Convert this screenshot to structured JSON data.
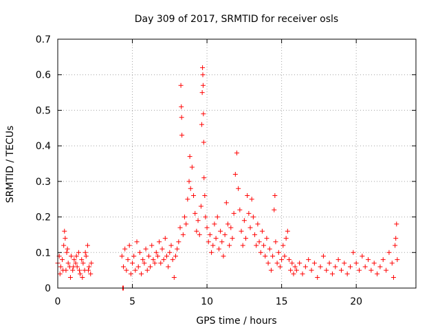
{
  "chart_data": {
    "type": "scatter",
    "title": "Day 309 of 2017, SRMTID for receiver osls",
    "xlabel": "GPS time / hours",
    "ylabel": "SRMTID / TECUs",
    "xlim": [
      0,
      24
    ],
    "ylim": [
      0,
      0.7
    ],
    "x_ticks": [
      0,
      5,
      10,
      15,
      20
    ],
    "y_ticks": [
      0,
      0.1,
      0.2,
      0.3,
      0.4,
      0.5,
      0.6,
      0.7
    ],
    "x_tick_labels": [
      "0",
      "5",
      "10",
      "15",
      "20"
    ],
    "y_tick_labels": [
      "0",
      "0.1",
      "0.2",
      "0.3",
      "0.4",
      "0.5",
      "0.6",
      "0.7"
    ],
    "grid": true,
    "marker": "+",
    "series": [
      {
        "name": "osls",
        "color": "#ff0000",
        "points": [
          [
            0.0,
            0.07
          ],
          [
            0.1,
            0.09
          ],
          [
            0.2,
            0.06
          ],
          [
            0.3,
            0.08
          ],
          [
            0.4,
            0.12
          ],
          [
            0.45,
            0.16
          ],
          [
            0.5,
            0.14
          ],
          [
            0.55,
            0.05
          ],
          [
            0.6,
            0.1
          ],
          [
            0.7,
            0.07
          ],
          [
            0.8,
            0.06
          ],
          [
            0.9,
            0.09
          ],
          [
            1.0,
            0.05
          ],
          [
            1.1,
            0.08
          ],
          [
            1.2,
            0.07
          ],
          [
            1.3,
            0.06
          ],
          [
            1.4,
            0.1
          ],
          [
            1.5,
            0.04
          ],
          [
            1.6,
            0.08
          ],
          [
            1.7,
            0.07
          ],
          [
            1.8,
            0.05
          ],
          [
            1.9,
            0.09
          ],
          [
            2.0,
            0.12
          ],
          [
            2.1,
            0.06
          ],
          [
            2.2,
            0.04
          ],
          [
            2.25,
            0.07
          ],
          [
            0.15,
            0.04
          ],
          [
            0.35,
            0.05
          ],
          [
            0.65,
            0.11
          ],
          [
            0.85,
            0.03
          ],
          [
            1.05,
            0.06
          ],
          [
            1.25,
            0.09
          ],
          [
            1.45,
            0.05
          ],
          [
            1.65,
            0.03
          ],
          [
            1.85,
            0.1
          ],
          [
            2.05,
            0.05
          ],
          [
            4.35,
            0.0
          ],
          [
            4.4,
            0.0
          ],
          [
            4.3,
            0.09
          ],
          [
            4.4,
            0.06
          ],
          [
            4.5,
            0.11
          ],
          [
            4.6,
            0.05
          ],
          [
            4.7,
            0.08
          ],
          [
            4.8,
            0.12
          ],
          [
            4.9,
            0.04
          ],
          [
            5.0,
            0.07
          ],
          [
            5.1,
            0.09
          ],
          [
            5.2,
            0.05
          ],
          [
            5.3,
            0.13
          ],
          [
            5.4,
            0.06
          ],
          [
            5.5,
            0.1
          ],
          [
            5.6,
            0.04
          ],
          [
            5.7,
            0.08
          ],
          [
            5.8,
            0.07
          ],
          [
            5.9,
            0.11
          ],
          [
            6.0,
            0.05
          ],
          [
            6.1,
            0.09
          ],
          [
            6.2,
            0.06
          ],
          [
            6.3,
            0.12
          ],
          [
            6.4,
            0.08
          ],
          [
            6.5,
            0.07
          ],
          [
            6.6,
            0.1
          ],
          [
            6.7,
            0.09
          ],
          [
            6.8,
            0.13
          ],
          [
            6.9,
            0.07
          ],
          [
            7.0,
            0.11
          ],
          [
            7.1,
            0.08
          ],
          [
            7.2,
            0.14
          ],
          [
            7.3,
            0.09
          ],
          [
            7.4,
            0.06
          ],
          [
            7.5,
            0.1
          ],
          [
            7.6,
            0.12
          ],
          [
            7.7,
            0.08
          ],
          [
            7.8,
            0.03
          ],
          [
            7.9,
            0.09
          ],
          [
            8.0,
            0.11
          ],
          [
            8.1,
            0.13
          ],
          [
            8.2,
            0.17
          ],
          [
            8.25,
            0.57
          ],
          [
            8.28,
            0.51
          ],
          [
            8.3,
            0.48
          ],
          [
            8.32,
            0.43
          ],
          [
            8.4,
            0.15
          ],
          [
            8.5,
            0.2
          ],
          [
            8.6,
            0.18
          ],
          [
            8.7,
            0.25
          ],
          [
            8.8,
            0.3
          ],
          [
            8.85,
            0.37
          ],
          [
            8.9,
            0.28
          ],
          [
            9.0,
            0.34
          ],
          [
            9.1,
            0.26
          ],
          [
            9.2,
            0.21
          ],
          [
            9.3,
            0.16
          ],
          [
            9.4,
            0.19
          ],
          [
            9.5,
            0.15
          ],
          [
            9.6,
            0.23
          ],
          [
            9.65,
            0.46
          ],
          [
            9.68,
            0.55
          ],
          [
            9.7,
            0.62
          ],
          [
            9.72,
            0.6
          ],
          [
            9.74,
            0.57
          ],
          [
            9.76,
            0.49
          ],
          [
            9.78,
            0.41
          ],
          [
            9.8,
            0.31
          ],
          [
            9.85,
            0.26
          ],
          [
            9.9,
            0.2
          ],
          [
            10.0,
            0.17
          ],
          [
            10.1,
            0.13
          ],
          [
            10.2,
            0.15
          ],
          [
            10.3,
            0.1
          ],
          [
            10.4,
            0.12
          ],
          [
            10.5,
            0.18
          ],
          [
            10.6,
            0.14
          ],
          [
            10.7,
            0.2
          ],
          [
            10.8,
            0.11
          ],
          [
            10.9,
            0.16
          ],
          [
            11.0,
            0.13
          ],
          [
            11.1,
            0.09
          ],
          [
            11.2,
            0.15
          ],
          [
            11.3,
            0.24
          ],
          [
            11.4,
            0.18
          ],
          [
            11.5,
            0.12
          ],
          [
            11.6,
            0.17
          ],
          [
            11.7,
            0.14
          ],
          [
            11.8,
            0.21
          ],
          [
            11.9,
            0.32
          ],
          [
            12.0,
            0.38
          ],
          [
            12.1,
            0.28
          ],
          [
            12.2,
            0.22
          ],
          [
            12.3,
            0.16
          ],
          [
            12.4,
            0.12
          ],
          [
            12.5,
            0.19
          ],
          [
            12.6,
            0.14
          ],
          [
            12.7,
            0.26
          ],
          [
            12.8,
            0.21
          ],
          [
            12.9,
            0.17
          ],
          [
            13.0,
            0.25
          ],
          [
            13.1,
            0.2
          ],
          [
            13.2,
            0.15
          ],
          [
            13.3,
            0.12
          ],
          [
            13.4,
            0.18
          ],
          [
            13.5,
            0.13
          ],
          [
            13.6,
            0.1
          ],
          [
            13.7,
            0.16
          ],
          [
            13.8,
            0.12
          ],
          [
            13.9,
            0.09
          ],
          [
            14.0,
            0.14
          ],
          [
            14.1,
            0.07
          ],
          [
            14.2,
            0.11
          ],
          [
            14.3,
            0.05
          ],
          [
            14.4,
            0.09
          ],
          [
            14.5,
            0.22
          ],
          [
            14.55,
            0.26
          ],
          [
            14.6,
            0.13
          ],
          [
            14.7,
            0.07
          ],
          [
            14.8,
            0.1
          ],
          [
            14.9,
            0.06
          ],
          [
            15.0,
            0.08
          ],
          [
            15.1,
            0.12
          ],
          [
            15.2,
            0.09
          ],
          [
            15.3,
            0.14
          ],
          [
            15.4,
            0.16
          ],
          [
            15.5,
            0.08
          ],
          [
            15.6,
            0.05
          ],
          [
            15.7,
            0.07
          ],
          [
            15.8,
            0.04
          ],
          [
            15.9,
            0.06
          ],
          [
            16.0,
            0.05
          ],
          [
            16.2,
            0.07
          ],
          [
            16.4,
            0.04
          ],
          [
            16.6,
            0.06
          ],
          [
            16.8,
            0.08
          ],
          [
            17.0,
            0.05
          ],
          [
            17.2,
            0.07
          ],
          [
            17.4,
            0.03
          ],
          [
            17.6,
            0.06
          ],
          [
            17.8,
            0.09
          ],
          [
            18.0,
            0.05
          ],
          [
            18.2,
            0.07
          ],
          [
            18.4,
            0.04
          ],
          [
            18.6,
            0.06
          ],
          [
            18.8,
            0.08
          ],
          [
            19.0,
            0.05
          ],
          [
            19.2,
            0.07
          ],
          [
            19.4,
            0.04
          ],
          [
            19.6,
            0.06
          ],
          [
            19.8,
            0.1
          ],
          [
            20.0,
            0.07
          ],
          [
            20.2,
            0.05
          ],
          [
            20.4,
            0.09
          ],
          [
            20.6,
            0.06
          ],
          [
            20.8,
            0.08
          ],
          [
            21.0,
            0.05
          ],
          [
            21.2,
            0.07
          ],
          [
            21.4,
            0.04
          ],
          [
            21.6,
            0.06
          ],
          [
            21.8,
            0.08
          ],
          [
            22.0,
            0.05
          ],
          [
            22.2,
            0.1
          ],
          [
            22.4,
            0.07
          ],
          [
            22.5,
            0.03
          ],
          [
            22.6,
            0.12
          ],
          [
            22.65,
            0.14
          ],
          [
            22.7,
            0.18
          ],
          [
            22.75,
            0.08
          ]
        ]
      }
    ]
  }
}
